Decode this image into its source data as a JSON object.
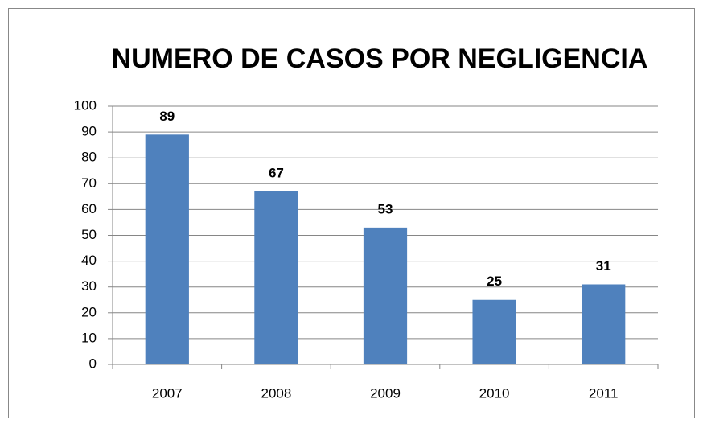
{
  "chart_data": {
    "type": "bar",
    "title": "NUMERO DE CASOS POR NEGLIGENCIA",
    "categories": [
      "2007",
      "2008",
      "2009",
      "2010",
      "2011"
    ],
    "values": [
      89,
      67,
      53,
      25,
      31
    ],
    "color": "#4f81bd",
    "ylim": [
      0,
      100
    ],
    "yticks": [
      0,
      10,
      20,
      30,
      40,
      50,
      60,
      70,
      80,
      90,
      100
    ],
    "grid": true
  }
}
